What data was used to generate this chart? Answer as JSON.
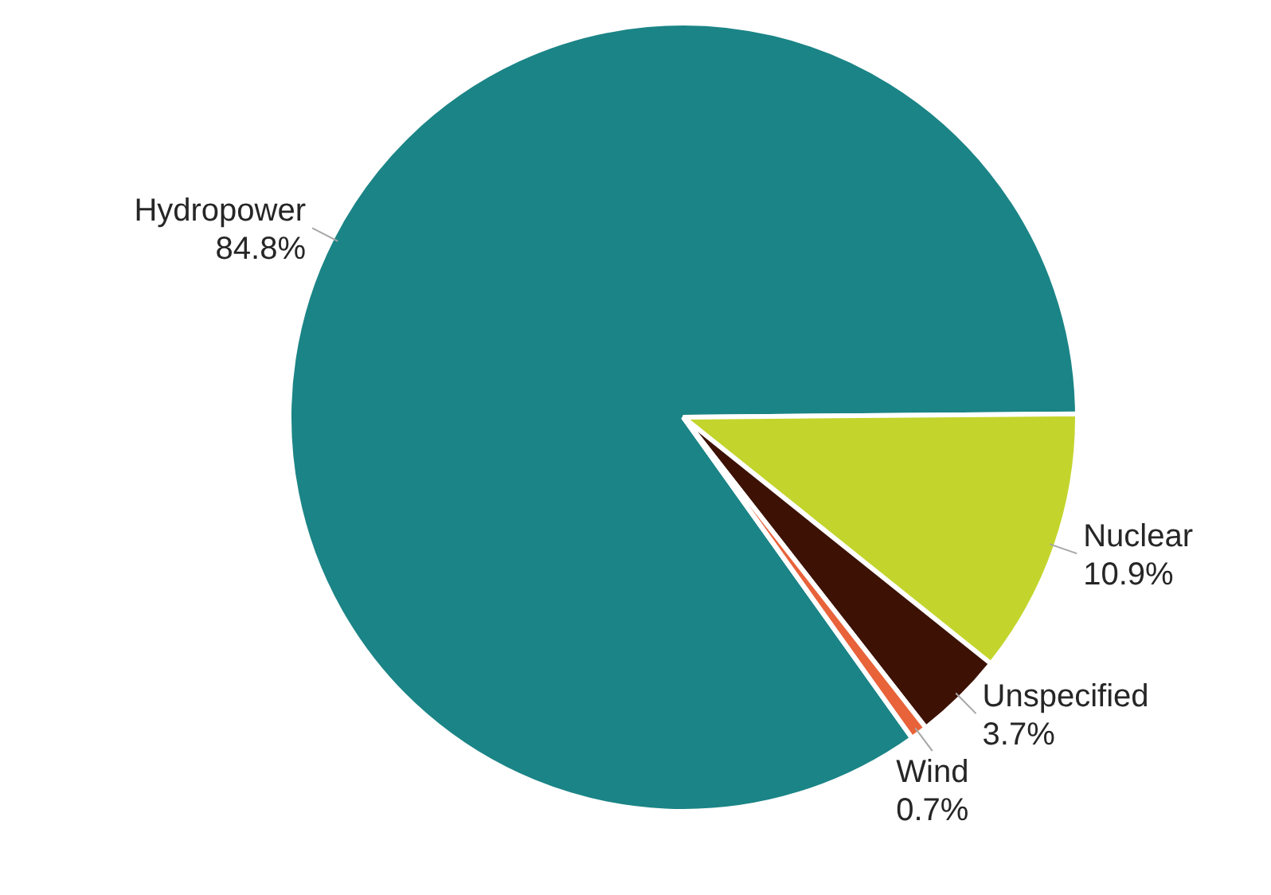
{
  "chart_data": {
    "type": "pie",
    "categories": [
      "Hydropower",
      "Nuclear",
      "Unspecified",
      "Wind"
    ],
    "values": [
      84.8,
      10.9,
      3.7,
      0.7
    ],
    "value_labels": [
      "84.8%",
      "10.9%",
      "3.7%",
      "0.7%"
    ],
    "colors": [
      "#1b8486",
      "#c3d52c",
      "#3d1204",
      "#e8633a"
    ],
    "legend": false
  }
}
